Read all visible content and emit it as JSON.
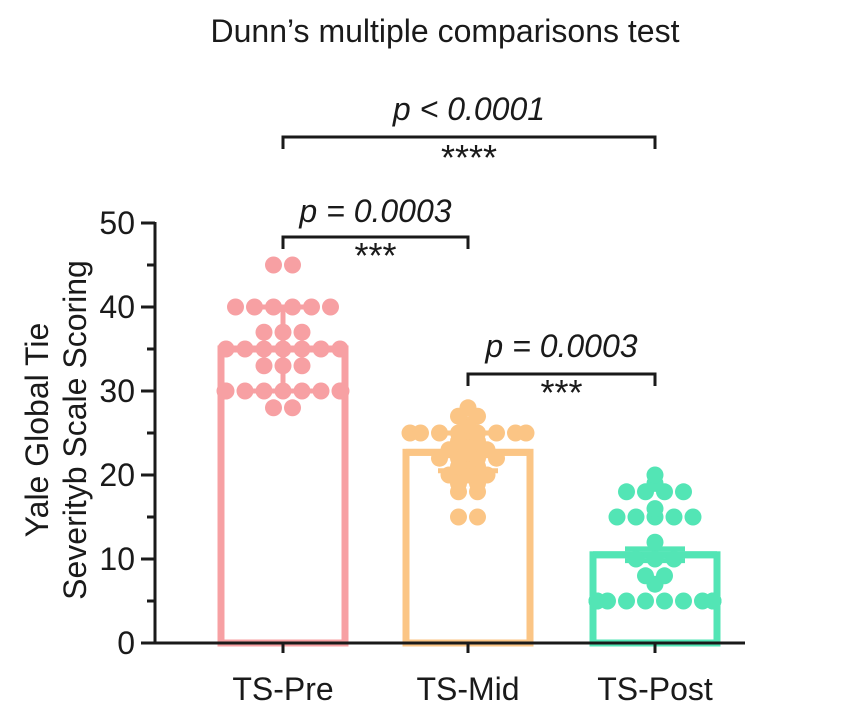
{
  "chart_data": {
    "type": "bar",
    "title": "Dunn’s multiple comparisons test",
    "ylabel_lines": [
      "Yale Global Tie",
      "Severityb Scale Scoring"
    ],
    "xlabel": "",
    "ylim": [
      0,
      50
    ],
    "yticks": [
      0,
      10,
      20,
      30,
      40,
      50
    ],
    "categories": [
      "TS-Pre",
      "TS-Mid",
      "TS-Post"
    ],
    "colors": [
      "#f7a0a3",
      "#fbc585",
      "#53e5b5"
    ],
    "values": [
      35,
      22.7,
      10.5
    ],
    "error": [
      {
        "lower": 30,
        "upper": 40
      },
      {
        "lower": 20.5,
        "upper": 25
      },
      {
        "lower": 9.8,
        "upper": 11.2
      }
    ],
    "points": [
      [
        45,
        45,
        40,
        40,
        40,
        40,
        40,
        40,
        37,
        37,
        37,
        35,
        35,
        35,
        35,
        35,
        35,
        35,
        33,
        33,
        33,
        30,
        30,
        30,
        30,
        30,
        30,
        30,
        30,
        30,
        28,
        28
      ],
      [
        28,
        27,
        27,
        26,
        25,
        25,
        25,
        25,
        25,
        25,
        25,
        25,
        24,
        24,
        23,
        23,
        23,
        22,
        22,
        22,
        22,
        21,
        21,
        20,
        20,
        20,
        19,
        19,
        18,
        18,
        15,
        15
      ],
      [
        20,
        19,
        18,
        18,
        18,
        18,
        16,
        15,
        15,
        15,
        15,
        15,
        12,
        10,
        10,
        10,
        8,
        8,
        7,
        5,
        5,
        5,
        5,
        5,
        5,
        5,
        5,
        5,
        5,
        5,
        5
      ]
    ],
    "comparisons": [
      {
        "from": 0,
        "to": 1,
        "p": "p = 0.0003",
        "stars": "***"
      },
      {
        "from": 1,
        "to": 2,
        "p": "p = 0.0003",
        "stars": "***"
      },
      {
        "from": 0,
        "to": 2,
        "p": "p < 0.0001",
        "stars": "****"
      }
    ],
    "grid": false,
    "legend": "none"
  }
}
